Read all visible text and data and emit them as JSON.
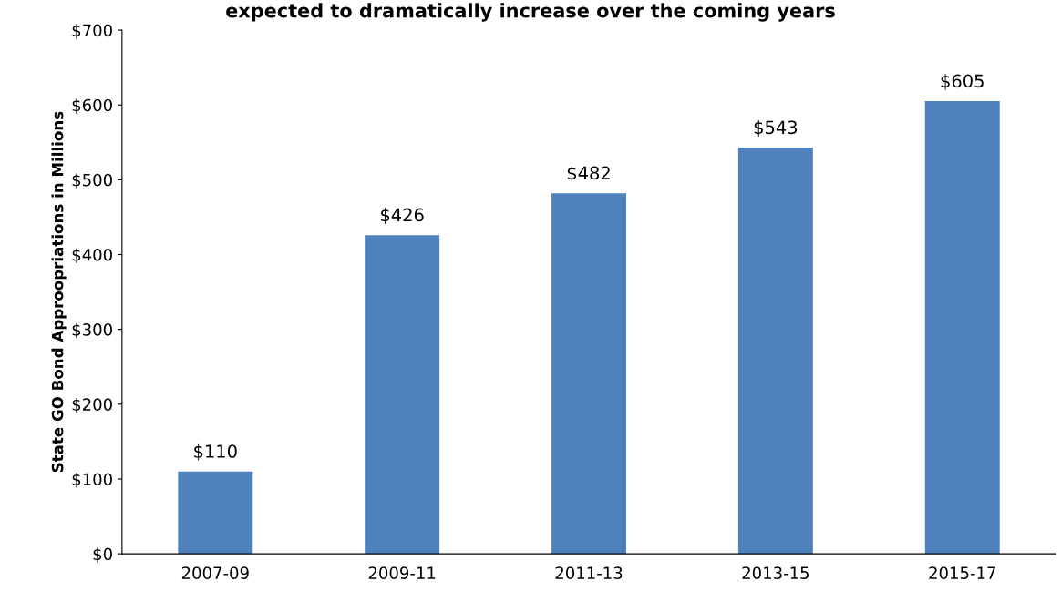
{
  "chart_data": {
    "type": "bar",
    "title": "expected to dramatically increase over the coming years",
    "ylabel": "State GO Bond Approopriations in Millions",
    "categories": [
      "2007-09",
      "2009-11",
      "2011-13",
      "2013-15",
      "2015-17"
    ],
    "values": [
      110,
      426,
      482,
      543,
      605
    ],
    "value_labels": [
      "$110",
      "$426",
      "$482",
      "$543",
      "$605"
    ],
    "color": "#4f81bd",
    "ylim": [
      0,
      700
    ],
    "yticks": [
      {
        "value": 0,
        "label": "$0"
      },
      {
        "value": 100,
        "label": "$100"
      },
      {
        "value": 200,
        "label": "$200"
      },
      {
        "value": 300,
        "label": "$300"
      },
      {
        "value": 400,
        "label": "$400"
      },
      {
        "value": 500,
        "label": "$500"
      },
      {
        "value": 600,
        "label": "$600"
      },
      {
        "value": 700,
        "label": "$700"
      }
    ],
    "grid": false,
    "legend": false
  }
}
